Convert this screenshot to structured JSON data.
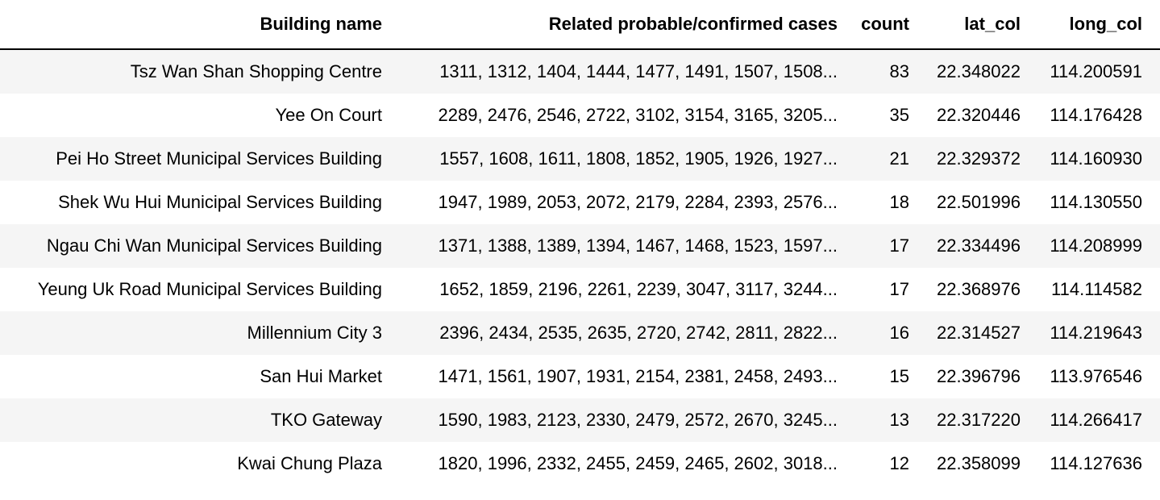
{
  "table": {
    "headers": [
      "Building name",
      "Related probable/confirmed cases",
      "count",
      "lat_col",
      "long_col"
    ],
    "rows": [
      {
        "name": "Tsz Wan Shan Shopping Centre",
        "cases": "1311, 1312, 1404, 1444, 1477, 1491, 1507, 1508...",
        "count": "83",
        "lat": "22.348022",
        "long": "114.200591"
      },
      {
        "name": "Yee On Court",
        "cases": "2289, 2476, 2546, 2722, 3102, 3154, 3165, 3205...",
        "count": "35",
        "lat": "22.320446",
        "long": "114.176428"
      },
      {
        "name": "Pei Ho Street Municipal Services Building",
        "cases": "1557, 1608, 1611, 1808, 1852, 1905, 1926, 1927...",
        "count": "21",
        "lat": "22.329372",
        "long": "114.160930"
      },
      {
        "name": "Shek Wu Hui Municipal Services Building",
        "cases": "1947, 1989, 2053, 2072, 2179, 2284, 2393, 2576...",
        "count": "18",
        "lat": "22.501996",
        "long": "114.130550"
      },
      {
        "name": "Ngau Chi Wan Municipal Services Building",
        "cases": "1371, 1388, 1389, 1394, 1467, 1468, 1523, 1597...",
        "count": "17",
        "lat": "22.334496",
        "long": "114.208999"
      },
      {
        "name": "Yeung Uk Road Municipal Services Building",
        "cases": "1652, 1859, 2196, 2261, 2239, 3047, 3117, 3244...",
        "count": "17",
        "lat": "22.368976",
        "long": "114.114582"
      },
      {
        "name": "Millennium City 3",
        "cases": "2396, 2434, 2535, 2635, 2720, 2742, 2811, 2822...",
        "count": "16",
        "lat": "22.314527",
        "long": "114.219643"
      },
      {
        "name": "San Hui Market",
        "cases": "1471, 1561, 1907, 1931, 2154, 2381, 2458, 2493...",
        "count": "15",
        "lat": "22.396796",
        "long": "113.976546"
      },
      {
        "name": "TKO Gateway",
        "cases": "1590, 1983, 2123, 2330, 2479, 2572, 2670, 3245...",
        "count": "13",
        "lat": "22.317220",
        "long": "114.266417"
      },
      {
        "name": "Kwai Chung Plaza",
        "cases": "1820, 1996, 2332, 2455, 2459, 2465, 2602, 3018...",
        "count": "12",
        "lat": "22.358099",
        "long": "114.127636"
      }
    ]
  }
}
